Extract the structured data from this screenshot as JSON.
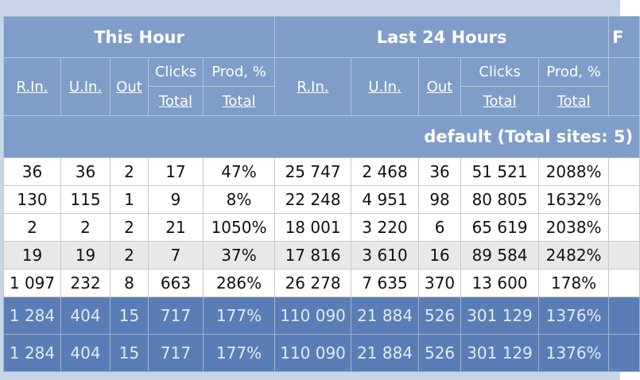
{
  "header": {
    "groups": [
      "This Hour",
      "Last 24 Hours",
      "F"
    ],
    "columns": [
      {
        "label": "R.In."
      },
      {
        "label": "U.In."
      },
      {
        "label": "Out"
      },
      {
        "label": "Clicks",
        "sub": "Total"
      },
      {
        "label": "Prod, %",
        "sub": "Total"
      },
      {
        "label": "R.In."
      },
      {
        "label": "U.In."
      },
      {
        "label": "Out"
      },
      {
        "label": "Clicks",
        "sub": "Total"
      },
      {
        "label": "Prod, %",
        "sub": "Total"
      }
    ]
  },
  "group": "default (Total sites: 5)",
  "rows": [
    [
      "36",
      "36",
      "2",
      "17",
      "47%",
      "25 747",
      "2 468",
      "36",
      "51 521",
      "2088%"
    ],
    [
      "130",
      "115",
      "1",
      "9",
      "8%",
      "22 248",
      "4 951",
      "98",
      "80 805",
      "1632%"
    ],
    [
      "2",
      "2",
      "2",
      "21",
      "1050%",
      "18 001",
      "3 220",
      "6",
      "65 619",
      "2038%"
    ],
    [
      "19",
      "19",
      "2",
      "7",
      "37%",
      "17 816",
      "3 610",
      "16",
      "89 584",
      "2482%"
    ],
    [
      "1 097",
      "232",
      "8",
      "663",
      "286%",
      "26 278",
      "7 635",
      "370",
      "13 600",
      "178%"
    ]
  ],
  "totals": [
    [
      "1 284",
      "404",
      "15",
      "717",
      "177%",
      "110 090",
      "21 884",
      "526",
      "301 129",
      "1376%"
    ],
    [
      "1 284",
      "404",
      "15",
      "717",
      "177%",
      "110 090",
      "21 884",
      "526",
      "301 129",
      "1376%"
    ]
  ]
}
